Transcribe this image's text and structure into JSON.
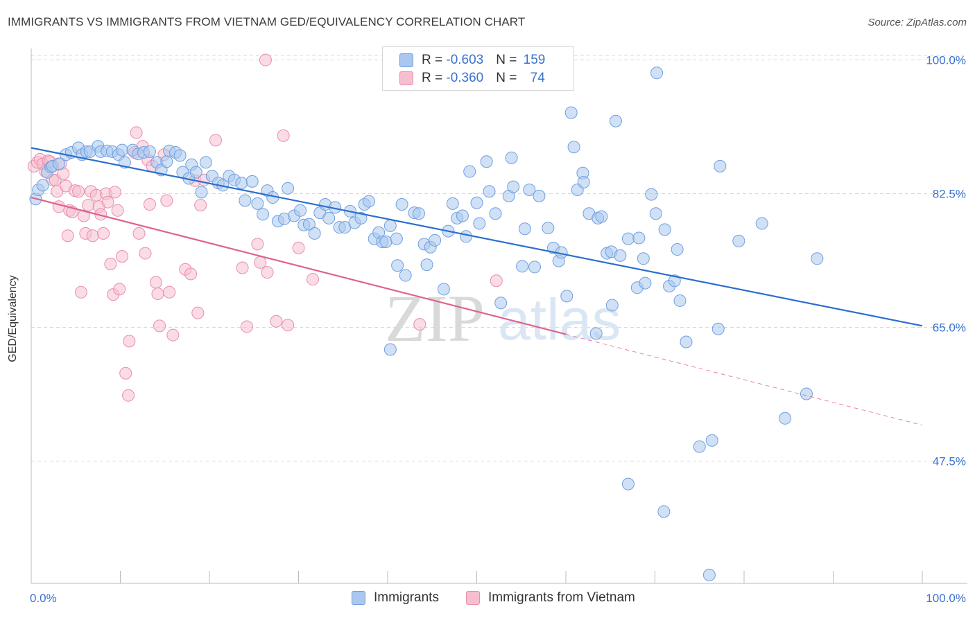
{
  "title": "IMMIGRANTS VS IMMIGRANTS FROM VIETNAM GED/EQUIVALENCY CORRELATION CHART",
  "source": "Source: ZipAtlas.com",
  "watermark": {
    "zip": "ZIP",
    "atlas": "atlas"
  },
  "colors": {
    "blue_fill": "#aac8ef",
    "blue_stroke": "#6f9fe0",
    "blue_line": "#2a6fcf",
    "pink_fill": "#f6bfd0",
    "pink_stroke": "#ea8dab",
    "pink_line": "#e0628e",
    "axis_text": "#3a72d1",
    "grid": "#d8d8d8"
  },
  "legend": {
    "row1": {
      "r_label": "R = ",
      "r_value": "-0.603",
      "n_label": "N = ",
      "n_value": "159"
    },
    "row2": {
      "r_label": "R = ",
      "r_value": "-0.360",
      "n_label": "N = ",
      "n_value": "74"
    }
  },
  "bottom_legend": {
    "series1": "Immigrants",
    "series2": "Immigrants from Vietnam"
  },
  "chart_data": {
    "type": "scatter",
    "title": "IMMIGRANTS VS IMMIGRANTS FROM VIETNAM GED/EQUIVALENCY CORRELATION CHART",
    "xlabel": "",
    "ylabel": "GED/Equivalency",
    "xlim": [
      0,
      100
    ],
    "ylim": [
      31.5,
      101.5
    ],
    "x_tick_labels": [
      "0.0%",
      "100.0%"
    ],
    "y_ticks": [
      47.5,
      65.0,
      82.5,
      100.0
    ],
    "y_tick_labels": [
      "47.5%",
      "65.0%",
      "82.5%",
      "100.0%"
    ],
    "grid": true,
    "legend_position": "top-center",
    "series": [
      {
        "name": "Immigrants",
        "color": "#aac8ef",
        "trend": {
          "x": [
            0,
            100
          ],
          "y": [
            88.5,
            65.2
          ]
        },
        "points": [
          [
            0.5,
            81.8
          ],
          [
            0.8,
            83.0
          ],
          [
            1.3,
            83.6
          ],
          [
            1.8,
            85.3
          ],
          [
            2.2,
            86.0
          ],
          [
            2.4,
            86.1
          ],
          [
            3.1,
            86.4
          ],
          [
            3.9,
            87.6
          ],
          [
            4.5,
            87.9
          ],
          [
            5.3,
            88.5
          ],
          [
            5.7,
            87.6
          ],
          [
            6.2,
            88.0
          ],
          [
            6.6,
            88.0
          ],
          [
            7.5,
            88.7
          ],
          [
            7.8,
            88.0
          ],
          [
            8.5,
            88.1
          ],
          [
            9.1,
            88.0
          ],
          [
            9.8,
            87.6
          ],
          [
            10.2,
            88.2
          ],
          [
            10.5,
            86.6
          ],
          [
            11.4,
            88.2
          ],
          [
            12.0,
            87.7
          ],
          [
            12.6,
            87.9
          ],
          [
            13.3,
            88.0
          ],
          [
            14.1,
            86.6
          ],
          [
            14.6,
            85.6
          ],
          [
            15.2,
            86.7
          ],
          [
            15.5,
            88.1
          ],
          [
            16.2,
            87.9
          ],
          [
            16.7,
            87.5
          ],
          [
            17.0,
            85.3
          ],
          [
            17.7,
            84.5
          ],
          [
            18.0,
            86.3
          ],
          [
            18.5,
            85.3
          ],
          [
            19.1,
            82.7
          ],
          [
            19.6,
            86.6
          ],
          [
            20.3,
            84.8
          ],
          [
            21.0,
            83.9
          ],
          [
            21.5,
            83.6
          ],
          [
            22.2,
            84.8
          ],
          [
            22.8,
            84.3
          ],
          [
            23.6,
            83.9
          ],
          [
            24.0,
            81.6
          ],
          [
            24.8,
            84.1
          ],
          [
            25.4,
            81.2
          ],
          [
            26.0,
            79.8
          ],
          [
            26.5,
            82.9
          ],
          [
            27.1,
            82.0
          ],
          [
            27.7,
            78.9
          ],
          [
            28.4,
            79.2
          ],
          [
            28.8,
            83.2
          ],
          [
            29.5,
            79.6
          ],
          [
            30.2,
            80.3
          ],
          [
            30.6,
            78.4
          ],
          [
            31.2,
            78.5
          ],
          [
            31.8,
            77.3
          ],
          [
            32.4,
            80.0
          ],
          [
            33.0,
            81.1
          ],
          [
            33.4,
            79.3
          ],
          [
            34.1,
            80.7
          ],
          [
            34.6,
            78.1
          ],
          [
            35.2,
            78.1
          ],
          [
            35.8,
            80.2
          ],
          [
            36.3,
            78.7
          ],
          [
            37.0,
            79.3
          ],
          [
            37.4,
            81.1
          ],
          [
            37.9,
            81.5
          ],
          [
            38.5,
            76.6
          ],
          [
            39.0,
            77.4
          ],
          [
            39.4,
            76.2
          ],
          [
            39.8,
            76.2
          ],
          [
            40.3,
            78.3
          ],
          [
            41.0,
            76.6
          ],
          [
            41.1,
            73.1
          ],
          [
            41.6,
            81.1
          ],
          [
            42.0,
            71.8
          ],
          [
            43.0,
            80.0
          ],
          [
            43.5,
            79.9
          ],
          [
            44.1,
            75.9
          ],
          [
            44.4,
            73.2
          ],
          [
            44.8,
            75.5
          ],
          [
            45.3,
            76.4
          ],
          [
            46.3,
            70.0
          ],
          [
            46.8,
            77.6
          ],
          [
            47.3,
            81.2
          ],
          [
            47.8,
            79.3
          ],
          [
            48.4,
            79.6
          ],
          [
            48.8,
            76.9
          ],
          [
            49.2,
            85.4
          ],
          [
            50.0,
            81.3
          ],
          [
            50.3,
            78.6
          ],
          [
            51.1,
            86.7
          ],
          [
            51.4,
            82.8
          ],
          [
            52.1,
            79.9
          ],
          [
            52.7,
            68.2
          ],
          [
            53.6,
            82.2
          ],
          [
            53.9,
            87.2
          ],
          [
            54.1,
            83.4
          ],
          [
            55.1,
            73.0
          ],
          [
            55.4,
            77.9
          ],
          [
            55.9,
            83.0
          ],
          [
            56.5,
            72.9
          ],
          [
            57.0,
            82.2
          ],
          [
            58.0,
            78.0
          ],
          [
            58.6,
            75.4
          ],
          [
            59.2,
            73.7
          ],
          [
            59.5,
            74.8
          ],
          [
            60.1,
            69.1
          ],
          [
            60.6,
            93.1
          ],
          [
            60.9,
            88.6
          ],
          [
            61.3,
            83.0
          ],
          [
            61.9,
            85.2
          ],
          [
            62.0,
            84.0
          ],
          [
            62.6,
            79.9
          ],
          [
            63.6,
            79.3
          ],
          [
            64.0,
            79.5
          ],
          [
            64.6,
            74.7
          ],
          [
            65.1,
            74.9
          ],
          [
            65.2,
            67.9
          ],
          [
            65.6,
            92.0
          ],
          [
            66.1,
            74.4
          ],
          [
            67.0,
            76.6
          ],
          [
            68.0,
            70.2
          ],
          [
            68.2,
            76.7
          ],
          [
            68.7,
            74.0
          ],
          [
            68.9,
            70.8
          ],
          [
            69.6,
            82.4
          ],
          [
            70.1,
            79.9
          ],
          [
            70.2,
            98.3
          ],
          [
            71.1,
            77.8
          ],
          [
            71.6,
            70.4
          ],
          [
            72.2,
            71.1
          ],
          [
            72.5,
            75.2
          ],
          [
            72.8,
            68.5
          ],
          [
            73.5,
            63.1
          ],
          [
            75.0,
            49.4
          ],
          [
            76.4,
            50.2
          ],
          [
            77.1,
            64.8
          ],
          [
            77.3,
            86.1
          ],
          [
            79.4,
            76.3
          ],
          [
            82.0,
            78.6
          ],
          [
            84.6,
            53.1
          ],
          [
            87.0,
            56.3
          ],
          [
            88.2,
            74.0
          ],
          [
            40.3,
            62.1
          ],
          [
            67.0,
            44.5
          ],
          [
            71.0,
            40.9
          ],
          [
            76.1,
            32.6
          ],
          [
            63.4,
            64.2
          ]
        ]
      },
      {
        "name": "Immigrants from Vietnam",
        "color": "#f6bfd0",
        "trend": {
          "x": [
            0,
            60
          ],
          "y": [
            82.0,
            64.1
          ]
        },
        "trend_dashed": {
          "x": [
            60,
            100
          ],
          "y": [
            64.1,
            52.2
          ]
        },
        "points": [
          [
            0.3,
            86.1
          ],
          [
            0.7,
            86.6
          ],
          [
            1.0,
            87.0
          ],
          [
            1.3,
            86.4
          ],
          [
            1.6,
            85.4
          ],
          [
            1.9,
            86.8
          ],
          [
            2.1,
            86.7
          ],
          [
            2.4,
            84.3
          ],
          [
            2.7,
            84.3
          ],
          [
            2.9,
            82.8
          ],
          [
            3.1,
            80.8
          ],
          [
            3.3,
            86.4
          ],
          [
            3.6,
            85.1
          ],
          [
            3.9,
            83.5
          ],
          [
            4.1,
            77.0
          ],
          [
            4.3,
            80.3
          ],
          [
            4.6,
            80.1
          ],
          [
            4.9,
            82.9
          ],
          [
            5.3,
            82.8
          ],
          [
            5.6,
            69.6
          ],
          [
            5.9,
            79.6
          ],
          [
            6.1,
            77.3
          ],
          [
            6.4,
            81.0
          ],
          [
            6.7,
            82.8
          ],
          [
            6.9,
            77.0
          ],
          [
            7.3,
            82.3
          ],
          [
            7.6,
            80.8
          ],
          [
            7.8,
            79.8
          ],
          [
            8.1,
            77.3
          ],
          [
            8.4,
            82.5
          ],
          [
            8.6,
            81.4
          ],
          [
            8.9,
            73.3
          ],
          [
            9.2,
            69.3
          ],
          [
            9.4,
            82.7
          ],
          [
            9.7,
            80.3
          ],
          [
            9.9,
            70.0
          ],
          [
            10.2,
            74.3
          ],
          [
            10.6,
            59.0
          ],
          [
            10.9,
            56.1
          ],
          [
            11.0,
            63.2
          ],
          [
            11.6,
            87.9
          ],
          [
            11.8,
            90.5
          ],
          [
            12.1,
            77.3
          ],
          [
            12.5,
            88.7
          ],
          [
            12.8,
            74.7
          ],
          [
            13.1,
            86.9
          ],
          [
            13.3,
            81.1
          ],
          [
            13.6,
            86.1
          ],
          [
            14.0,
            70.9
          ],
          [
            14.2,
            69.4
          ],
          [
            14.4,
            65.2
          ],
          [
            14.9,
            87.6
          ],
          [
            15.2,
            81.6
          ],
          [
            15.5,
            69.6
          ],
          [
            15.9,
            64.0
          ],
          [
            17.3,
            72.6
          ],
          [
            17.9,
            72.0
          ],
          [
            18.4,
            84.2
          ],
          [
            18.7,
            66.9
          ],
          [
            19.0,
            81.0
          ],
          [
            19.4,
            84.3
          ],
          [
            20.7,
            89.5
          ],
          [
            23.7,
            72.8
          ],
          [
            24.2,
            65.1
          ],
          [
            25.4,
            75.9
          ],
          [
            25.7,
            73.5
          ],
          [
            26.5,
            72.2
          ],
          [
            27.5,
            65.8
          ],
          [
            28.3,
            90.1
          ],
          [
            28.8,
            65.3
          ],
          [
            30.0,
            75.4
          ],
          [
            31.6,
            71.3
          ],
          [
            43.6,
            65.4
          ],
          [
            52.2,
            71.1
          ],
          [
            26.3,
            100.0
          ]
        ]
      }
    ]
  }
}
